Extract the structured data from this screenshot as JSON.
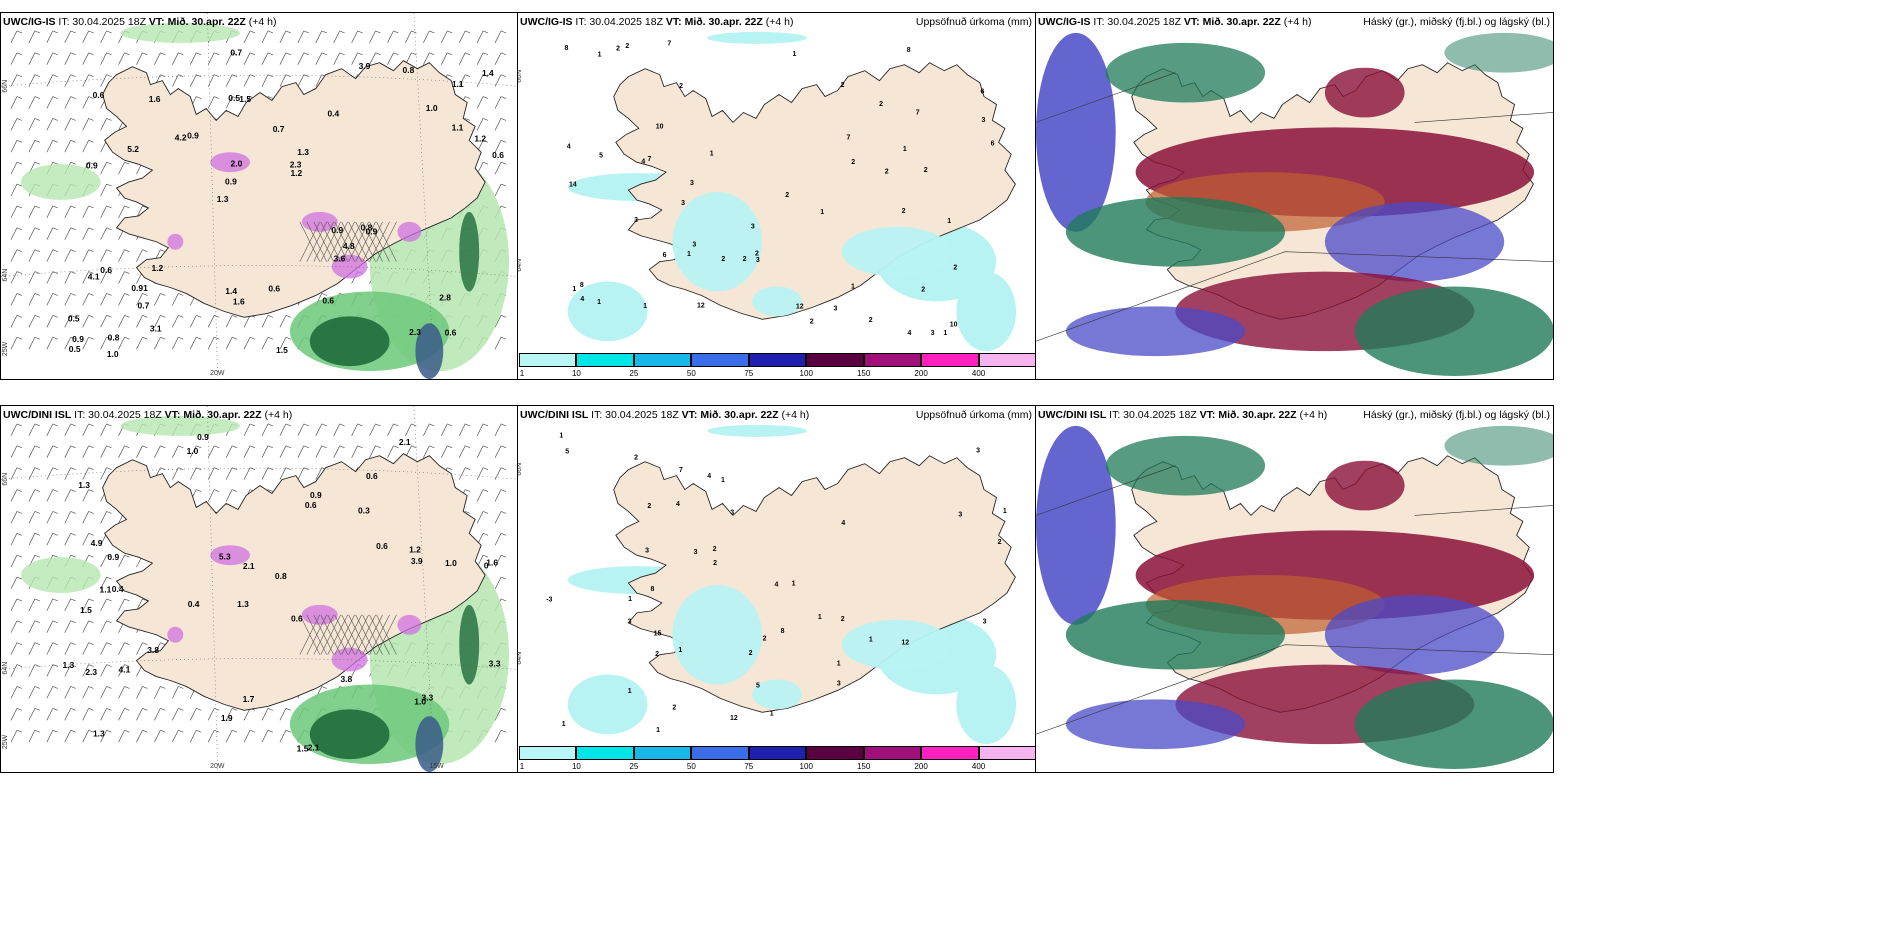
{
  "panels": [
    {
      "id": "ig-wind",
      "title_model": "UWC/IG-IS",
      "title_it": "IT: 30.04.2025 18Z",
      "title_vt_label": "VT:",
      "title_vt": "Mið. 30.apr. 22Z",
      "title_lead": "(+4 h)",
      "subtitle": "",
      "lat_labels": [
        "66N",
        "64N"
      ],
      "lon_labels": [
        "20W",
        "25W"
      ],
      "values": [
        "0.6",
        "0.9",
        "1.1",
        "1.3",
        "0.4",
        "0.8",
        "0.5",
        "0.7",
        "0.6",
        "0.9",
        "0.5",
        "0.7",
        "1.5",
        "1.3",
        "0.9",
        "0.6",
        "0.7",
        "0.6",
        "0.9",
        "1.1",
        "0.9",
        "1.4",
        "2.0",
        "1.6",
        "3.9",
        "1.2",
        "2.3",
        "2.8",
        "0.8",
        "1.5",
        "4.2",
        "5.2",
        "3.6",
        "3.1",
        "1.2",
        "2.3",
        "0.9",
        "1.6",
        "1.2",
        "4.1",
        "1.0",
        "1.4",
        "4.8",
        "0.6",
        "0.91",
        "1.0",
        "0.5",
        "0.6",
        "0.8"
      ]
    },
    {
      "id": "ig-precip",
      "title_model": "UWC/IG-IS",
      "title_it": "IT: 30.04.2025 18Z",
      "title_vt_label": "VT:",
      "title_vt": "Mið. 30.apr. 22Z",
      "title_lead": "(+4 h)",
      "subtitle": "Uppsöfnuð úrkoma (mm)",
      "lat_labels": [
        "66N",
        "64N"
      ],
      "values": [
        "3",
        "4",
        "2",
        "2",
        "1",
        "2",
        "2",
        "3",
        "1",
        "2",
        "2",
        "1",
        "8",
        "4",
        "3",
        "1",
        "2",
        "6",
        "6",
        "1",
        "3",
        "7",
        "3",
        "6",
        "2",
        "2",
        "12",
        "8",
        "7",
        "1",
        "3",
        "2",
        "1",
        "2",
        "2",
        "4",
        "5",
        "2",
        "3",
        "12",
        "14",
        "10",
        "1",
        "2",
        "3",
        "4",
        "2",
        "10",
        "7",
        "2",
        "2",
        "1",
        "1",
        "8",
        "3",
        "7",
        "1",
        "1"
      ]
    },
    {
      "id": "ig-cloud",
      "title_model": "UWC/IG-IS",
      "title_it": "IT: 30.04.2025 18Z",
      "title_vt_label": "VT:",
      "title_vt": "Mið. 30.apr. 22Z",
      "title_lead": "(+4 h)",
      "subtitle": "Háský (gr.), miðský (fj.bl.) og lágský (bl.)"
    },
    {
      "id": "dini-wind",
      "title_model": "UWC/DINI ISL",
      "title_it": "IT: 30.04.2025 18Z",
      "title_vt_label": "VT:",
      "title_vt": "Mið. 30.apr. 22Z",
      "title_lead": "(+4 h)",
      "subtitle": "",
      "lat_labels": [
        "66N",
        "64N"
      ],
      "lon_labels": [
        "20W",
        "15W",
        "25W"
      ],
      "values": [
        "0.9",
        "0.6",
        "0",
        "1.3",
        "0.6",
        "0.4",
        "1.3",
        "0.3",
        "1.5",
        "0.6",
        "0.8",
        "1.3",
        "1.0",
        "0.4",
        "1.5",
        "2.1",
        "1.7",
        "2.1",
        "0.6",
        "3.8",
        "0.9",
        "1.1",
        "1.6",
        "1.0",
        "1.3",
        "4.9",
        "2.1",
        "3.9",
        "3.3",
        "2.3",
        "1.0",
        "0.9",
        "4.1",
        "5.3",
        "3.8",
        "3.3",
        "1.2",
        "1.9"
      ]
    },
    {
      "id": "dini-precip",
      "title_model": "UWC/DINI ISL",
      "title_it": "IT: 30.04.2025 18Z",
      "title_vt_label": "VT:",
      "title_vt": "Mið. 30.apr. 22Z",
      "title_lead": "(+4 h)",
      "subtitle": "Uppsöfnuð úrkoma (mm)",
      "lat_labels": [
        "66N",
        "64N"
      ],
      "values": [
        "5",
        "1",
        "-3",
        "3",
        "1",
        "1",
        "1",
        "1",
        "1",
        "1",
        "2",
        "1",
        "1",
        "3",
        "2",
        "3",
        "2",
        "1",
        "4",
        "2",
        "2",
        "5",
        "2",
        "8",
        "1",
        "8",
        "15",
        "12",
        "12",
        "4",
        "1",
        "7",
        "3",
        "3",
        "4",
        "3",
        "2",
        "2",
        "3",
        "4",
        "2",
        "1",
        "2",
        "3"
      ]
    },
    {
      "id": "dini-cloud",
      "title_model": "UWC/DINI ISL",
      "title_it": "IT: 30.04.2025 18Z",
      "title_vt_label": "VT:",
      "title_vt": "Mið. 30.apr. 22Z",
      "title_lead": "(+4 h)",
      "subtitle": "Háský (gr.), miðský (fj.bl.) og lágský (bl.)"
    }
  ],
  "colorbar": {
    "ticks": [
      "1",
      "10",
      "25",
      "50",
      "75",
      "100",
      "150",
      "200",
      "400"
    ],
    "colors": [
      "#b9f7f7",
      "#00e5e5",
      "#17b7e6",
      "#3b6de8",
      "#2020b0",
      "#5a0040",
      "#a0107a",
      "#ff20c0",
      "#f5b3f0"
    ]
  },
  "colors": {
    "land": "#f5e6d6",
    "precip_light": "#b8f3f3",
    "wind_green_light": "#b6e6b0",
    "wind_green": "#6cc87a",
    "wind_green_dark": "#1e6b38",
    "purple": "#d070e0",
    "cloud_high": "#8a1038",
    "cloud_mid": "#c06030",
    "cloud_low": "#4a4ac8",
    "cloud_green": "#1f7a5a"
  }
}
